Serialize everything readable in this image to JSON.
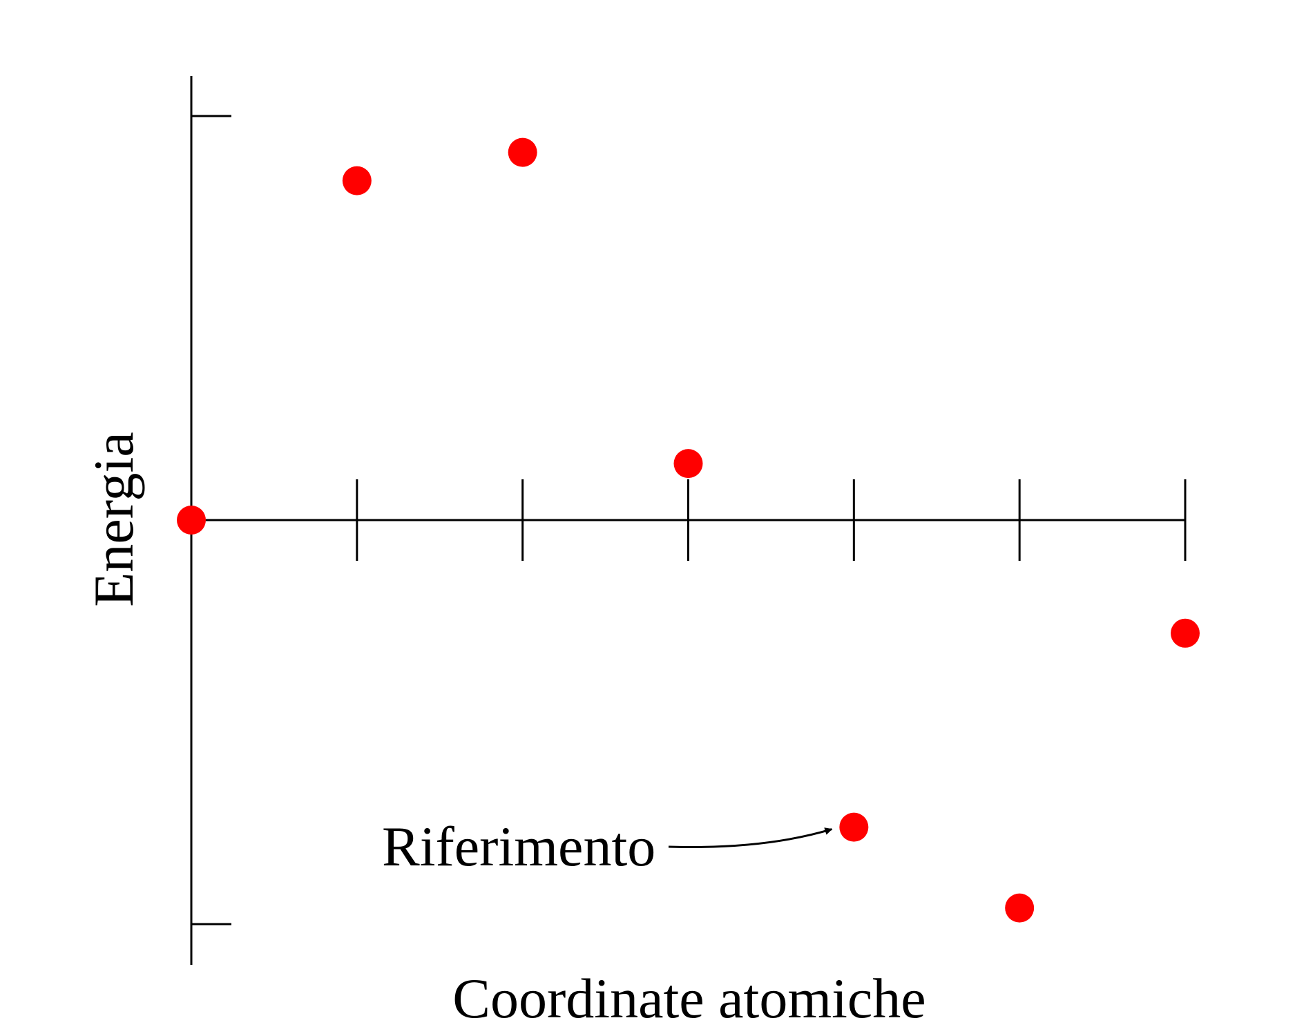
{
  "chart_data": {
    "type": "scatter",
    "title": "",
    "xlabel": "Coordinate atomiche",
    "ylabel": "Energia",
    "x": [
      0,
      1,
      2,
      3,
      4,
      5,
      6
    ],
    "y": [
      0,
      0.84,
      0.91,
      0.14,
      -0.76,
      -0.96,
      -0.28
    ],
    "xlim": [
      0,
      6
    ],
    "ylim": [
      -1,
      1
    ],
    "grid": false,
    "point_color": "#ff0000",
    "annotation": {
      "text": "Riferimento",
      "target_index": 4
    }
  }
}
